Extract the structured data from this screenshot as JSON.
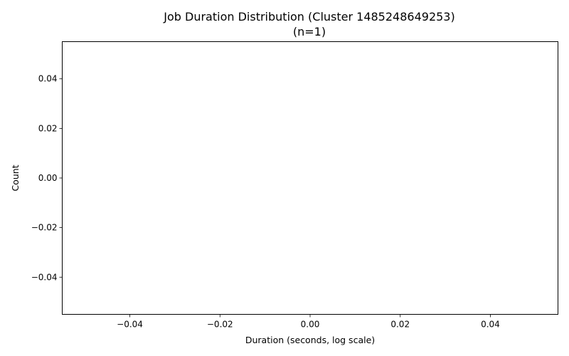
{
  "chart_data": {
    "type": "bar",
    "title": "Job Duration Distribution (Cluster 1485248649253)",
    "subtitle": "(n=1)",
    "xlabel": "Duration (seconds, log scale)",
    "ylabel": "Count",
    "xlim": [
      -0.055,
      0.055
    ],
    "ylim": [
      -0.055,
      0.055
    ],
    "x_ticks": [
      -0.04,
      -0.02,
      0.0,
      0.02,
      0.04
    ],
    "x_tick_labels": [
      "−0.04",
      "−0.02",
      "0.00",
      "0.02",
      "0.04"
    ],
    "y_ticks": [
      -0.04,
      -0.02,
      0.0,
      0.02,
      0.04
    ],
    "y_tick_labels": [
      "−0.04",
      "−0.02",
      "0.00",
      "0.02",
      "0.04"
    ],
    "series": [],
    "grid": false,
    "legend": "none"
  }
}
